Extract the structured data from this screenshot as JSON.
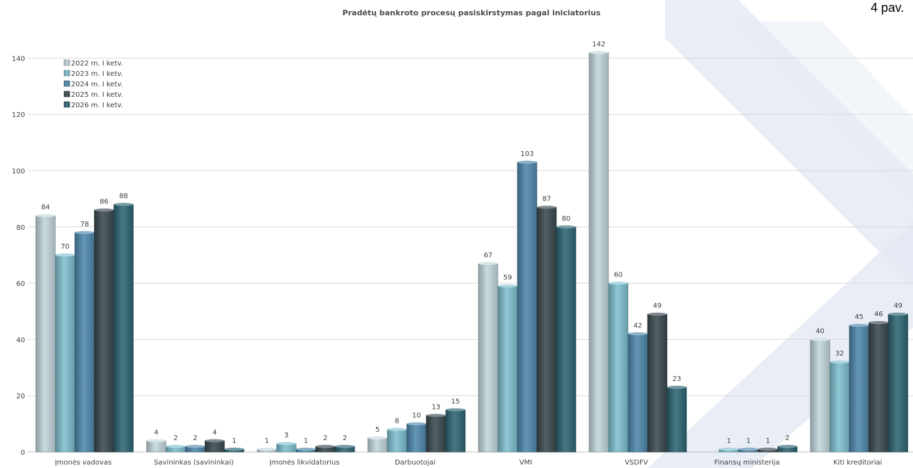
{
  "figure_label": "4 pav.",
  "chart_data": {
    "type": "bar",
    "title": "Pradėtų bankroto procesų pasiskirstymas pagal iniciatorius",
    "categories": [
      "Įmonės vadovas",
      "Savininkas (savininkai)",
      "Įmonės likvidatorius",
      "Darbuotojai",
      "VMI",
      "VSDFV",
      "Finansų ministerija",
      "Kiti kreditoriai"
    ],
    "series": [
      {
        "name": "2022 m. I ketv.",
        "color": "#c3d7dd",
        "values": [
          84,
          4,
          1,
          5,
          67,
          142,
          null,
          40
        ]
      },
      {
        "name": "2023 m. I ketv.",
        "color": "#7fc0cf",
        "values": [
          70,
          2,
          3,
          8,
          59,
          60,
          1,
          32
        ]
      },
      {
        "name": "2024 m. I ketv.",
        "color": "#4f88ad",
        "values": [
          78,
          2,
          1,
          10,
          103,
          42,
          1,
          45
        ]
      },
      {
        "name": "2025 m. I ketv.",
        "color": "#3a4a4f",
        "values": [
          86,
          4,
          2,
          13,
          87,
          49,
          1,
          46
        ]
      },
      {
        "name": "2026 m. I ketv.",
        "color": "#2e6774",
        "values": [
          88,
          1,
          2,
          15,
          80,
          23,
          2,
          49
        ]
      }
    ],
    "yticks": [
      0,
      20,
      40,
      60,
      80,
      100,
      120,
      140
    ],
    "ylim": [
      0,
      150
    ],
    "grid": true,
    "legend_position": "top-left"
  }
}
